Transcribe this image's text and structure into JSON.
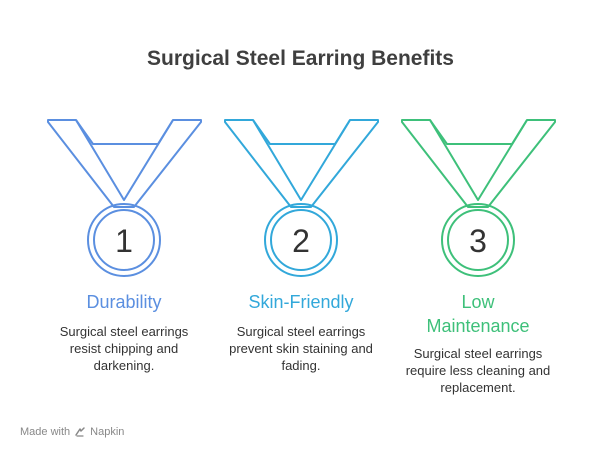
{
  "title": "Surgical Steel Earring Benefits",
  "medals": [
    {
      "number": "1",
      "label_lines": [
        "Durability"
      ],
      "description": "Surgical steel earrings resist chipping and darkening.",
      "color": "#5b8fe0"
    },
    {
      "number": "2",
      "label_lines": [
        "Skin-Friendly"
      ],
      "description": "Surgical steel earrings prevent skin staining and fading.",
      "color": "#32a8da"
    },
    {
      "number": "3",
      "label_lines": [
        "Low",
        "Maintenance"
      ],
      "description": "Surgical steel earrings require less cleaning and replacement.",
      "color": "#3ec07a"
    }
  ],
  "footer": {
    "made_with": "Made with",
    "brand": "Napkin",
    "icon": "napkin-logo-icon"
  }
}
